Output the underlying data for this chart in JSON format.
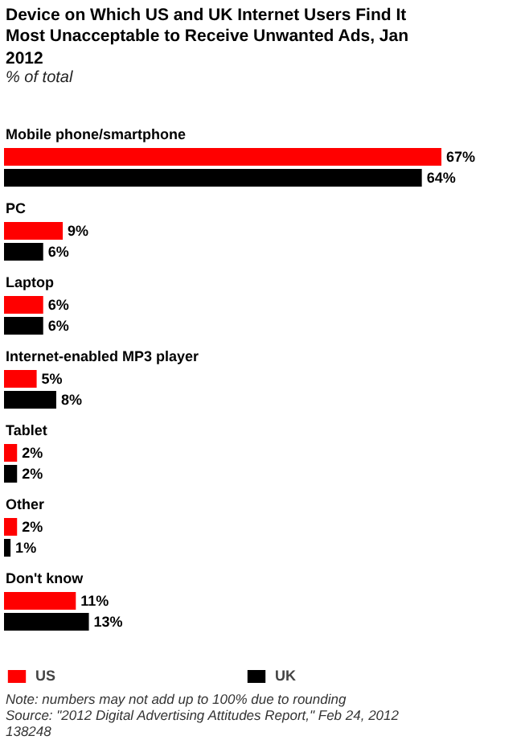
{
  "chart_data": {
    "type": "bar",
    "orientation": "horizontal",
    "title": "Device on Which US and UK Internet Users Find It Most Unacceptable to Receive Unwanted Ads, Jan 2012",
    "subtitle": "% of total",
    "categories": [
      "Mobile phone/smartphone",
      "PC",
      "Laptop",
      "Internet-enabled MP3 player",
      "Tablet",
      "Other",
      "Don't know"
    ],
    "series": [
      {
        "name": "US",
        "color": "#ff0000",
        "values": [
          67,
          9,
          6,
          5,
          2,
          2,
          11
        ],
        "value_labels": [
          "67%",
          "9%",
          "6%",
          "5%",
          "2%",
          "2%",
          "11%"
        ]
      },
      {
        "name": "UK",
        "color": "#000000",
        "values": [
          64,
          6,
          6,
          8,
          2,
          1,
          13
        ],
        "value_labels": [
          "64%",
          "6%",
          "6%",
          "8%",
          "2%",
          "1%",
          "13%"
        ]
      }
    ],
    "legend": "bottom",
    "annotations": [
      "Note: numbers may not add up to 100% due to rounding",
      "Source: \"2012 Digital Advertising Attitudes Report,\" Feb 24, 2012",
      "138248"
    ]
  }
}
